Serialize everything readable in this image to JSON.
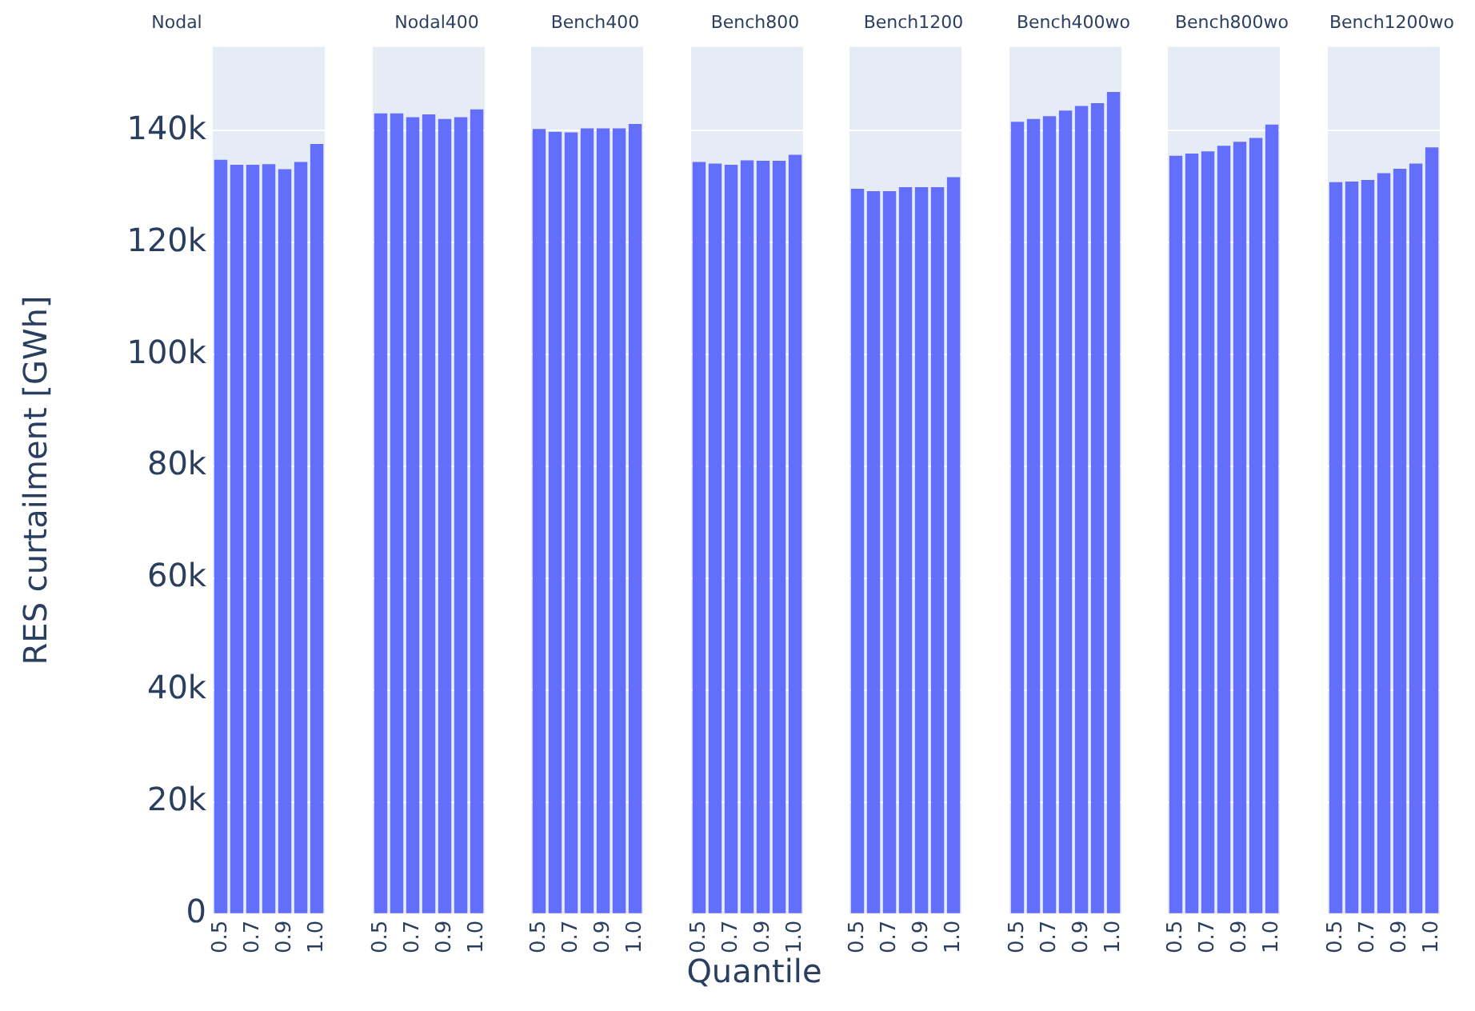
{
  "chart_data": [
    {
      "type": "bar",
      "title": "Nodal",
      "ylabel": "RES curtailment [GWh]",
      "categories": [
        "0.5",
        null,
        "0.7",
        null,
        "0.9",
        null,
        "1.0"
      ],
      "values": [
        134800,
        133900,
        133900,
        134000,
        133100,
        134400,
        137600
      ],
      "color": "#636efa",
      "ylim": [
        0,
        155000
      ],
      "yticks": [
        {
          "value": 0,
          "label": "0"
        },
        {
          "value": 20000,
          "label": "20k"
        },
        {
          "value": 40000,
          "label": "40k"
        },
        {
          "value": 60000,
          "label": "60k"
        },
        {
          "value": 80000,
          "label": "80k"
        },
        {
          "value": 100000,
          "label": "100k"
        },
        {
          "value": 120000,
          "label": "120k"
        },
        {
          "value": 140000,
          "label": "140k"
        }
      ],
      "grid": "y",
      "legend": false
    },
    {
      "type": "bar",
      "title": "Nodal400",
      "categories": [
        "0.5",
        null,
        "0.7",
        null,
        "0.9",
        null,
        "1.0"
      ],
      "values": [
        143100,
        143100,
        142400,
        142900,
        142100,
        142400,
        143800
      ],
      "color": "#636efa",
      "ylim": [
        0,
        155000
      ],
      "yticks": [
        {
          "value": 0,
          "label": null
        },
        {
          "value": 20000,
          "label": null
        },
        {
          "value": 40000,
          "label": null
        },
        {
          "value": 60000,
          "label": null
        },
        {
          "value": 80000,
          "label": null
        },
        {
          "value": 100000,
          "label": null
        },
        {
          "value": 120000,
          "label": null
        },
        {
          "value": 140000,
          "label": null
        }
      ],
      "grid": "y",
      "legend": false,
      "tick_labels": "x"
    },
    {
      "type": "bar",
      "title": "Bench400",
      "categories": [
        "0.5",
        null,
        "0.7",
        null,
        "0.9",
        null,
        "1.0"
      ],
      "values": [
        140300,
        139800,
        139700,
        140400,
        140400,
        140400,
        141200
      ],
      "color": "#636efa",
      "ylim": [
        0,
        155000
      ],
      "yticks": [
        {
          "value": 0,
          "label": null
        },
        {
          "value": 20000,
          "label": null
        },
        {
          "value": 40000,
          "label": null
        },
        {
          "value": 60000,
          "label": null
        },
        {
          "value": 80000,
          "label": null
        },
        {
          "value": 100000,
          "label": null
        },
        {
          "value": 120000,
          "label": null
        },
        {
          "value": 140000,
          "label": null
        }
      ],
      "grid": "y",
      "legend": false,
      "tick_labels": "x"
    },
    {
      "type": "bar",
      "title": "Bench800",
      "xlabel": "Quantile",
      "categories": [
        "0.5",
        null,
        "0.7",
        null,
        "0.9",
        null,
        "1.0"
      ],
      "values": [
        134400,
        134100,
        133900,
        134700,
        134600,
        134600,
        135700
      ],
      "color": "#636efa",
      "ylim": [
        0,
        155000
      ],
      "yticks": [
        {
          "value": 0,
          "label": null
        },
        {
          "value": 20000,
          "label": null
        },
        {
          "value": 40000,
          "label": null
        },
        {
          "value": 60000,
          "label": null
        },
        {
          "value": 80000,
          "label": null
        },
        {
          "value": 100000,
          "label": null
        },
        {
          "value": 120000,
          "label": null
        },
        {
          "value": 140000,
          "label": null
        }
      ],
      "grid": "y",
      "legend": false,
      "tick_labels": "x"
    },
    {
      "type": "bar",
      "title": "Bench1200",
      "categories": [
        "0.5",
        null,
        "0.7",
        null,
        "0.9",
        null,
        "1.0"
      ],
      "values": [
        129600,
        129200,
        129200,
        129900,
        129900,
        129900,
        131700
      ],
      "color": "#636efa",
      "ylim": [
        0,
        155000
      ],
      "yticks": [
        {
          "value": 0,
          "label": null
        },
        {
          "value": 20000,
          "label": null
        },
        {
          "value": 40000,
          "label": null
        },
        {
          "value": 60000,
          "label": null
        },
        {
          "value": 80000,
          "label": null
        },
        {
          "value": 100000,
          "label": null
        },
        {
          "value": 120000,
          "label": null
        },
        {
          "value": 140000,
          "label": null
        }
      ],
      "grid": "y",
      "legend": false,
      "tick_labels": "x"
    },
    {
      "type": "bar",
      "title": "Bench400wo",
      "categories": [
        "0.5",
        null,
        "0.7",
        null,
        "0.9",
        null,
        "1.0"
      ],
      "values": [
        141600,
        142100,
        142600,
        143600,
        144400,
        144900,
        146900
      ],
      "color": "#636efa",
      "ylim": [
        0,
        155000
      ],
      "yticks": [
        {
          "value": 0,
          "label": null
        },
        {
          "value": 20000,
          "label": null
        },
        {
          "value": 40000,
          "label": null
        },
        {
          "value": 60000,
          "label": null
        },
        {
          "value": 80000,
          "label": null
        },
        {
          "value": 100000,
          "label": null
        },
        {
          "value": 120000,
          "label": null
        },
        {
          "value": 140000,
          "label": null
        }
      ],
      "grid": "y",
      "legend": false,
      "tick_labels": "x"
    },
    {
      "type": "bar",
      "title": "Bench800wo",
      "categories": [
        "0.5",
        null,
        "0.7",
        null,
        "0.9",
        null,
        "1.0"
      ],
      "values": [
        135500,
        135900,
        136300,
        137300,
        138000,
        138700,
        141100
      ],
      "color": "#636efa",
      "ylim": [
        0,
        155000
      ],
      "yticks": [
        {
          "value": 0,
          "label": null
        },
        {
          "value": 20000,
          "label": null
        },
        {
          "value": 40000,
          "label": null
        },
        {
          "value": 60000,
          "label": null
        },
        {
          "value": 80000,
          "label": null
        },
        {
          "value": 100000,
          "label": null
        },
        {
          "value": 120000,
          "label": null
        },
        {
          "value": 140000,
          "label": null
        }
      ],
      "grid": "y",
      "legend": false,
      "tick_labels": "x"
    },
    {
      "type": "bar",
      "title": "Bench1200wo",
      "categories": [
        "0.5",
        null,
        "0.7",
        null,
        "0.9",
        null,
        "1.0"
      ],
      "values": [
        130800,
        130900,
        131200,
        132400,
        133200,
        134100,
        137000
      ],
      "color": "#636efa",
      "ylim": [
        0,
        155000
      ],
      "yticks": [
        {
          "value": 0,
          "label": null
        },
        {
          "value": 20000,
          "label": null
        },
        {
          "value": 40000,
          "label": null
        },
        {
          "value": 60000,
          "label": null
        },
        {
          "value": 80000,
          "label": null
        },
        {
          "value": 100000,
          "label": null
        },
        {
          "value": 120000,
          "label": null
        },
        {
          "value": 140000,
          "label": null
        }
      ],
      "grid": "y",
      "legend": false,
      "tick_labels": "x"
    }
  ]
}
